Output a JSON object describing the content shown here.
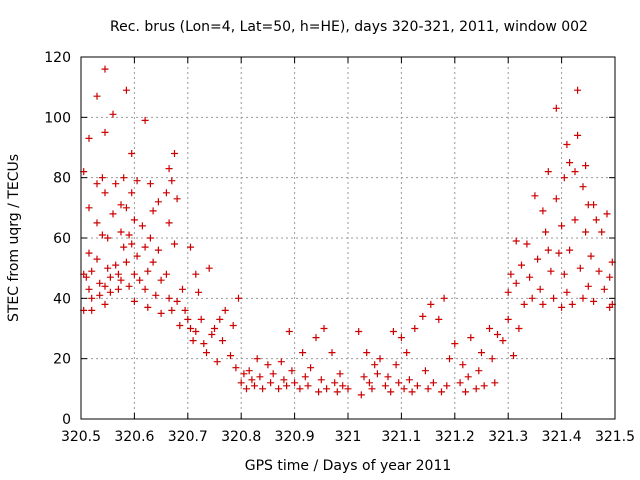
{
  "chart_data": {
    "type": "scatter",
    "title": "Rec. brus (Lon=4, Lat=50, h=HE), days 320-321, 2011, window 002",
    "xlabel": "GPS time / Days of year 2011",
    "ylabel": "STEC from uqrg / TECUs",
    "xlim": [
      320.5,
      321.5
    ],
    "ylim": [
      0,
      120
    ],
    "xticks": [
      320.5,
      320.6,
      320.7,
      320.8,
      320.9,
      321.0,
      321.1,
      321.2,
      321.3,
      321.4,
      321.5
    ],
    "xtick_labels": [
      "320.5",
      "320.6",
      "320.7",
      "320.8",
      "320.9",
      "321",
      "321.1",
      "321.2",
      "321.3",
      "321.4",
      "321.5"
    ],
    "yticks": [
      0,
      20,
      40,
      60,
      80,
      100,
      120
    ],
    "ytick_labels": [
      "0",
      "20",
      "40",
      "60",
      "80",
      "100",
      "120"
    ],
    "grid": true,
    "marker": "+",
    "color": "#cc0000",
    "series": [
      {
        "points": [
          [
            320.505,
            82
          ],
          [
            320.505,
            48
          ],
          [
            320.505,
            36
          ],
          [
            320.51,
            47
          ],
          [
            320.515,
            93
          ],
          [
            320.515,
            70
          ],
          [
            320.515,
            55
          ],
          [
            320.515,
            43
          ],
          [
            320.52,
            49
          ],
          [
            320.52,
            40
          ],
          [
            320.52,
            36
          ],
          [
            320.53,
            107
          ],
          [
            320.53,
            78
          ],
          [
            320.53,
            65
          ],
          [
            320.53,
            53
          ],
          [
            320.535,
            45
          ],
          [
            320.535,
            41
          ],
          [
            320.54,
            80
          ],
          [
            320.54,
            61
          ],
          [
            320.545,
            116
          ],
          [
            320.545,
            95
          ],
          [
            320.545,
            75
          ],
          [
            320.545,
            44
          ],
          [
            320.545,
            38
          ],
          [
            320.55,
            60
          ],
          [
            320.55,
            50
          ],
          [
            320.555,
            47
          ],
          [
            320.555,
            42
          ],
          [
            320.56,
            101
          ],
          [
            320.56,
            68
          ],
          [
            320.565,
            78
          ],
          [
            320.565,
            51
          ],
          [
            320.57,
            48
          ],
          [
            320.57,
            43
          ],
          [
            320.575,
            71
          ],
          [
            320.575,
            62
          ],
          [
            320.575,
            46
          ],
          [
            320.58,
            80
          ],
          [
            320.58,
            57
          ],
          [
            320.585,
            109
          ],
          [
            320.585,
            70
          ],
          [
            320.585,
            52
          ],
          [
            320.59,
            61
          ],
          [
            320.59,
            44
          ],
          [
            320.595,
            88
          ],
          [
            320.595,
            75
          ],
          [
            320.595,
            58
          ],
          [
            320.6,
            66
          ],
          [
            320.6,
            48
          ],
          [
            320.6,
            39
          ],
          [
            320.605,
            79
          ],
          [
            320.605,
            54
          ],
          [
            320.61,
            46
          ],
          [
            320.615,
            64
          ],
          [
            320.62,
            99
          ],
          [
            320.62,
            57
          ],
          [
            320.62,
            43
          ],
          [
            320.625,
            49
          ],
          [
            320.625,
            37
          ],
          [
            320.63,
            78
          ],
          [
            320.63,
            60
          ],
          [
            320.635,
            69
          ],
          [
            320.635,
            52
          ],
          [
            320.64,
            41
          ],
          [
            320.645,
            72
          ],
          [
            320.645,
            56
          ],
          [
            320.65,
            46
          ],
          [
            320.65,
            35
          ],
          [
            320.66,
            75
          ],
          [
            320.66,
            48
          ],
          [
            320.665,
            83
          ],
          [
            320.665,
            65
          ],
          [
            320.665,
            40
          ],
          [
            320.67,
            79
          ],
          [
            320.67,
            36
          ],
          [
            320.675,
            88
          ],
          [
            320.675,
            58
          ],
          [
            320.68,
            73
          ],
          [
            320.68,
            39
          ],
          [
            320.685,
            31
          ],
          [
            320.69,
            43
          ],
          [
            320.695,
            36
          ],
          [
            320.7,
            33
          ],
          [
            320.705,
            57
          ],
          [
            320.705,
            30
          ],
          [
            320.71,
            26
          ],
          [
            320.715,
            48
          ],
          [
            320.715,
            29
          ],
          [
            320.72,
            42
          ],
          [
            320.725,
            33
          ],
          [
            320.73,
            25
          ],
          [
            320.735,
            22
          ],
          [
            320.74,
            50
          ],
          [
            320.745,
            28
          ],
          [
            320.75,
            30
          ],
          [
            320.755,
            19
          ],
          [
            320.76,
            33
          ],
          [
            320.765,
            26
          ],
          [
            320.77,
            36
          ],
          [
            320.78,
            21
          ],
          [
            320.785,
            31
          ],
          [
            320.79,
            17
          ],
          [
            320.795,
            40
          ],
          [
            320.8,
            12
          ],
          [
            320.805,
            15
          ],
          [
            320.81,
            10
          ],
          [
            320.815,
            16
          ],
          [
            320.82,
            13
          ],
          [
            320.825,
            11
          ],
          [
            320.83,
            20
          ],
          [
            320.835,
            14
          ],
          [
            320.84,
            10
          ],
          [
            320.85,
            18
          ],
          [
            320.855,
            12
          ],
          [
            320.86,
            15
          ],
          [
            320.87,
            10
          ],
          [
            320.875,
            19
          ],
          [
            320.88,
            13
          ],
          [
            320.885,
            11
          ],
          [
            320.89,
            29
          ],
          [
            320.895,
            16
          ],
          [
            320.9,
            12
          ],
          [
            320.91,
            10
          ],
          [
            320.915,
            22
          ],
          [
            320.92,
            14
          ],
          [
            320.925,
            11
          ],
          [
            320.93,
            17
          ],
          [
            320.94,
            27
          ],
          [
            320.945,
            9
          ],
          [
            320.95,
            13
          ],
          [
            320.955,
            30
          ],
          [
            320.96,
            10
          ],
          [
            320.97,
            22
          ],
          [
            320.975,
            12
          ],
          [
            320.98,
            9
          ],
          [
            320.985,
            15
          ],
          [
            320.99,
            11
          ],
          [
            321.0,
            10
          ],
          [
            321.02,
            29
          ],
          [
            321.025,
            8
          ],
          [
            321.03,
            14
          ],
          [
            321.035,
            22
          ],
          [
            321.04,
            12
          ],
          [
            321.045,
            10
          ],
          [
            321.05,
            18
          ],
          [
            321.055,
            15
          ],
          [
            321.06,
            20
          ],
          [
            321.07,
            11
          ],
          [
            321.075,
            14
          ],
          [
            321.08,
            9
          ],
          [
            321.085,
            29
          ],
          [
            321.09,
            18
          ],
          [
            321.095,
            12
          ],
          [
            321.1,
            27
          ],
          [
            321.105,
            10
          ],
          [
            321.11,
            22
          ],
          [
            321.115,
            13
          ],
          [
            321.12,
            9
          ],
          [
            321.125,
            30
          ],
          [
            321.13,
            11
          ],
          [
            321.14,
            34
          ],
          [
            321.145,
            16
          ],
          [
            321.15,
            10
          ],
          [
            321.155,
            38
          ],
          [
            321.16,
            12
          ],
          [
            321.17,
            33
          ],
          [
            321.175,
            9
          ],
          [
            321.18,
            40
          ],
          [
            321.185,
            11
          ],
          [
            321.19,
            20
          ],
          [
            321.2,
            25
          ],
          [
            321.21,
            12
          ],
          [
            321.215,
            18
          ],
          [
            321.22,
            9
          ],
          [
            321.225,
            14
          ],
          [
            321.23,
            27
          ],
          [
            321.24,
            10
          ],
          [
            321.245,
            16
          ],
          [
            321.25,
            22
          ],
          [
            321.255,
            11
          ],
          [
            321.265,
            30
          ],
          [
            321.27,
            20
          ],
          [
            321.275,
            12
          ],
          [
            321.28,
            28
          ],
          [
            321.29,
            26
          ],
          [
            321.3,
            42
          ],
          [
            321.3,
            33
          ],
          [
            321.305,
            48
          ],
          [
            321.31,
            21
          ],
          [
            321.315,
            59
          ],
          [
            321.315,
            45
          ],
          [
            321.32,
            30
          ],
          [
            321.325,
            51
          ],
          [
            321.33,
            38
          ],
          [
            321.335,
            58
          ],
          [
            321.34,
            47
          ],
          [
            321.345,
            40
          ],
          [
            321.35,
            74
          ],
          [
            321.355,
            53
          ],
          [
            321.36,
            43
          ],
          [
            321.365,
            69
          ],
          [
            321.365,
            38
          ],
          [
            321.37,
            62
          ],
          [
            321.375,
            82
          ],
          [
            321.375,
            56
          ],
          [
            321.38,
            49
          ],
          [
            321.385,
            40
          ],
          [
            321.39,
            103
          ],
          [
            321.39,
            73
          ],
          [
            321.395,
            55
          ],
          [
            321.4,
            64
          ],
          [
            321.4,
            37
          ],
          [
            321.405,
            80
          ],
          [
            321.405,
            48
          ],
          [
            321.41,
            91
          ],
          [
            321.41,
            42
          ],
          [
            321.415,
            85
          ],
          [
            321.415,
            56
          ],
          [
            321.42,
            38
          ],
          [
            321.425,
            82
          ],
          [
            321.425,
            66
          ],
          [
            321.43,
            109
          ],
          [
            321.43,
            94
          ],
          [
            321.435,
            50
          ],
          [
            321.44,
            77
          ],
          [
            321.44,
            40
          ],
          [
            321.445,
            84
          ],
          [
            321.445,
            62
          ],
          [
            321.45,
            71
          ],
          [
            321.45,
            44
          ],
          [
            321.455,
            54
          ],
          [
            321.46,
            71
          ],
          [
            321.46,
            39
          ],
          [
            321.465,
            66
          ],
          [
            321.47,
            49
          ],
          [
            321.475,
            62
          ],
          [
            321.48,
            43
          ],
          [
            321.485,
            68
          ],
          [
            321.49,
            47
          ],
          [
            321.49,
            37
          ],
          [
            321.495,
            52
          ],
          [
            321.495,
            38
          ]
        ]
      }
    ]
  }
}
